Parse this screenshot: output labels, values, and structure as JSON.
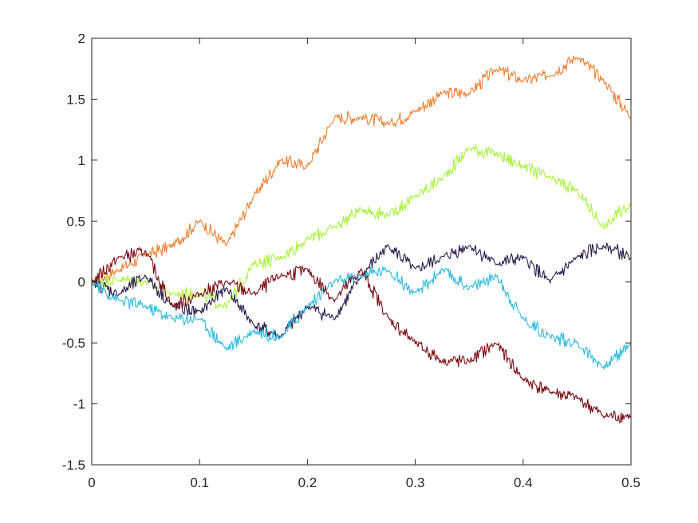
{
  "chart_data": {
    "type": "line",
    "title": "",
    "xlabel": "",
    "ylabel": "",
    "xlim": [
      0,
      0.5
    ],
    "ylim": [
      -1.5,
      2
    ],
    "x_ticks": [
      0,
      0.1,
      0.2,
      0.3,
      0.4,
      0.5
    ],
    "x_tick_labels": [
      "0",
      "0.1",
      "0.2",
      "0.3",
      "0.4",
      "0.5"
    ],
    "y_ticks": [
      -1.5,
      -1,
      -0.5,
      0,
      0.5,
      1,
      1.5,
      2
    ],
    "y_tick_labels": [
      "-1.5",
      "-1",
      "-0.5",
      "0",
      "0.5",
      "1",
      "1.5",
      "2"
    ],
    "grid": false,
    "legend": "none",
    "x": [
      0,
      0.025,
      0.05,
      0.075,
      0.1,
      0.125,
      0.15,
      0.175,
      0.2,
      0.225,
      0.25,
      0.275,
      0.3,
      0.325,
      0.35,
      0.375,
      0.4,
      0.425,
      0.45,
      0.475,
      0.5
    ],
    "series": [
      {
        "color": "#EF7F2F",
        "values": [
          0.0,
          0.1,
          0.22,
          0.3,
          0.5,
          0.3,
          0.7,
          1.0,
          0.95,
          1.35,
          1.35,
          1.3,
          1.4,
          1.55,
          1.55,
          1.75,
          1.65,
          1.7,
          1.85,
          1.65,
          1.35
        ]
      },
      {
        "color": "#A8F23C",
        "values": [
          0.0,
          0.02,
          0.0,
          -0.1,
          -0.1,
          -0.2,
          0.15,
          0.2,
          0.35,
          0.45,
          0.6,
          0.55,
          0.7,
          0.85,
          1.1,
          1.05,
          0.95,
          0.85,
          0.75,
          0.45,
          0.65
        ]
      },
      {
        "color": "#2A1A4A",
        "values": [
          0.0,
          -0.1,
          0.05,
          -0.2,
          -0.25,
          -0.05,
          -0.35,
          -0.45,
          -0.2,
          -0.3,
          0.05,
          0.3,
          0.1,
          0.2,
          0.3,
          0.15,
          0.2,
          0.0,
          0.2,
          0.3,
          0.2
        ]
      },
      {
        "color": "#2BBAE0",
        "values": [
          0.0,
          -0.15,
          -0.2,
          -0.3,
          -0.3,
          -0.55,
          -0.4,
          -0.45,
          -0.2,
          0.0,
          0.05,
          0.1,
          -0.1,
          0.1,
          -0.05,
          0.05,
          -0.3,
          -0.45,
          -0.5,
          -0.7,
          -0.5
        ]
      },
      {
        "color": "#7A0A12",
        "values": [
          0.0,
          0.2,
          0.25,
          -0.2,
          -0.1,
          0.0,
          -0.1,
          0.05,
          0.1,
          -0.15,
          0.1,
          -0.3,
          -0.5,
          -0.65,
          -0.65,
          -0.5,
          -0.8,
          -0.9,
          -0.95,
          -1.1,
          -1.1
        ]
      }
    ]
  }
}
